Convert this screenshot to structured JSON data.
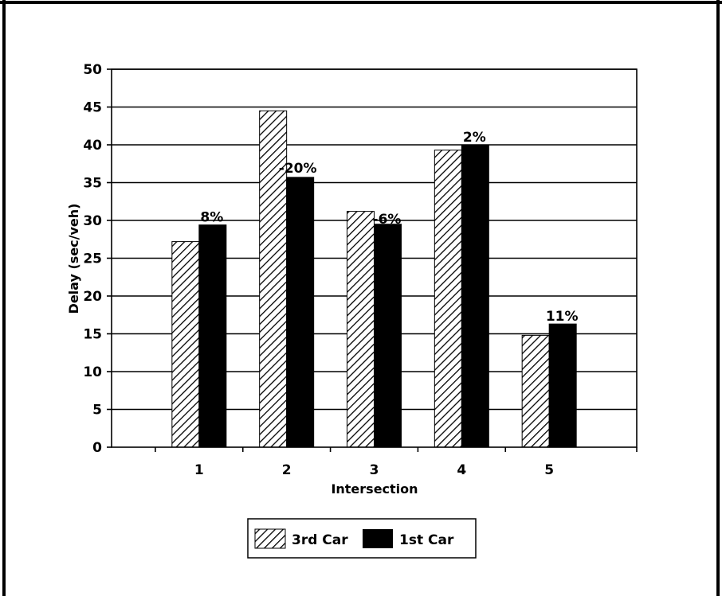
{
  "chart_data": {
    "type": "bar",
    "xlabel": "Intersection",
    "ylabel": "Delay (sec/veh)",
    "categories": [
      "1",
      "2",
      "3",
      "4",
      "5"
    ],
    "ylim": [
      0,
      50
    ],
    "yticks": [
      "0",
      "5",
      "10",
      "15",
      "20",
      "25",
      "30",
      "35",
      "40",
      "45",
      "50"
    ],
    "grid": true,
    "legend_position": "bottom",
    "series": [
      {
        "name": "3rd Car",
        "values": [
          27.2,
          44.5,
          31.2,
          39.3,
          14.8
        ],
        "pattern": "diagonal-hatch"
      },
      {
        "name": "1st Car",
        "values": [
          29.4,
          35.7,
          29.5,
          40.0,
          16.3
        ],
        "pattern": "solid",
        "color": "#000000"
      }
    ],
    "annotations": [
      "8%",
      "-20%",
      "-6%",
      "2%",
      "11%"
    ]
  }
}
